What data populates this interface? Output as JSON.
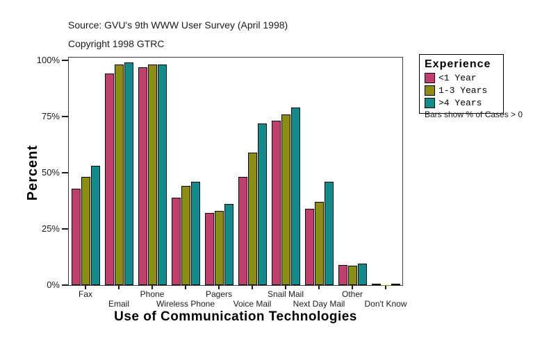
{
  "header": {
    "source": "Source: GVU's 9th WWW User Survey (April 1998)",
    "copyright": "Copyright 1998 GTRC"
  },
  "legend": {
    "title": "Experience",
    "items": [
      {
        "label": "<1 Year",
        "color": "#C13F6E"
      },
      {
        "label": "1-3 Years",
        "color": "#8C8C15"
      },
      {
        "label": ">4 Years",
        "color": "#148A8D"
      }
    ]
  },
  "note": "Bars show % of Cases > 0",
  "chart_data": {
    "type": "bar",
    "title": "",
    "xlabel": "Use of Communication Technologies",
    "ylabel": "Percent",
    "ylim": [
      0,
      100
    ],
    "ytick_labels": [
      "0%",
      "25%",
      "50%",
      "75%",
      "100%"
    ],
    "ytick_values": [
      0,
      25,
      50,
      75,
      100
    ],
    "grid": false,
    "legend_position": "right",
    "categories": [
      "Fax",
      "Email",
      "Phone",
      "Wireless Phone",
      "Pagers",
      "Voice Mail",
      "Snail Mail",
      "Next Day Mail",
      "Other",
      "Don't Know"
    ],
    "series": [
      {
        "name": "<1 Year",
        "color": "#C13F6E",
        "values": [
          43,
          94,
          97,
          39,
          32,
          48,
          73,
          34,
          9,
          0.5
        ]
      },
      {
        "name": "1-3 Years",
        "color": "#8C8C15",
        "values": [
          48,
          98,
          98,
          44,
          33,
          59,
          76,
          37,
          8.5,
          0.1
        ]
      },
      {
        "name": ">4 Years",
        "color": "#148A8D",
        "values": [
          53,
          99,
          98,
          46,
          36,
          72,
          79,
          46,
          9.5,
          0.5
        ]
      }
    ]
  }
}
